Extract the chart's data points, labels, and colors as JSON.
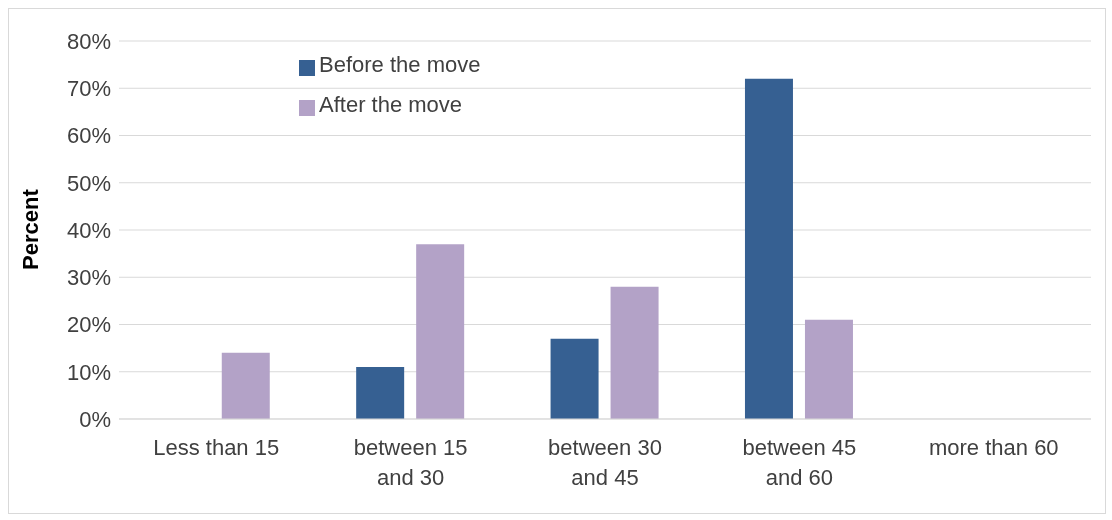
{
  "chart_data": {
    "type": "bar",
    "ylabel": "Percent",
    "categories": [
      "Less than 15",
      "between 15 and 30",
      "between 30 and 45",
      "between 45 and 60",
      "more than 60"
    ],
    "series": [
      {
        "name": "Before the move",
        "color": "#366092",
        "values": [
          0,
          11,
          17,
          72,
          0
        ]
      },
      {
        "name": "After the move",
        "color": "#b3a2c7",
        "values": [
          14,
          37,
          28,
          21,
          0
        ]
      }
    ],
    "ylim": [
      0,
      80
    ],
    "yticks": [
      {
        "value": 0,
        "label": "0%"
      },
      {
        "value": 10,
        "label": "10%"
      },
      {
        "value": 20,
        "label": "20%"
      },
      {
        "value": 30,
        "label": "30%"
      },
      {
        "value": 40,
        "label": "40%"
      },
      {
        "value": 50,
        "label": "50%"
      },
      {
        "value": 60,
        "label": "60%"
      },
      {
        "value": 70,
        "label": "70%"
      },
      {
        "value": 80,
        "label": "80%"
      }
    ],
    "grid": "y",
    "legend": "top left"
  }
}
